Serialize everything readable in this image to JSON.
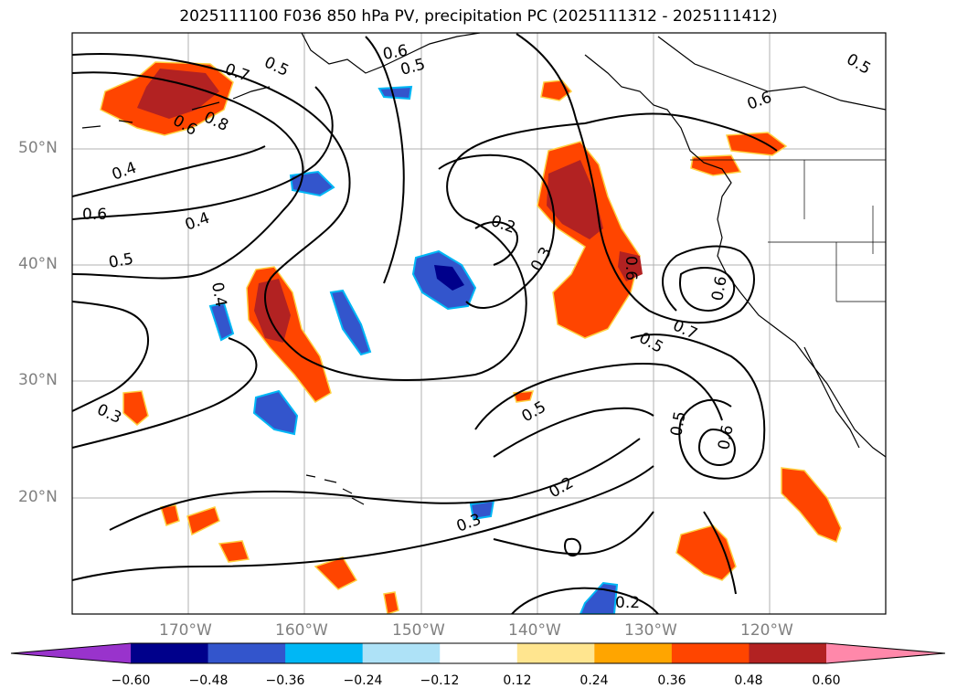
{
  "title": "2025111100 F036 850 hPa PV, precipitation PC (2025111312 - 2025111412)",
  "lat_labels": [
    "50°N",
    "40°N",
    "30°N",
    "20°N"
  ],
  "lon_labels": [
    "170°W",
    "160°W",
    "150°W",
    "140°W",
    "130°W",
    "120°W"
  ],
  "contour_labels": [
    "0.7",
    "0.5",
    "0.6",
    "0.5",
    "0.5",
    "0.6",
    "0.8",
    "0.6",
    "0.4",
    "0.6",
    "0.5",
    "0.4",
    "0.4",
    "0.2",
    "0.3",
    "0.6",
    "0.7",
    "0.5",
    "0.6",
    "0.3",
    "0.5",
    "0.5",
    "0.6",
    "0.2",
    "0.3",
    "0.2"
  ],
  "colorbar": {
    "ticks": [
      "−0.60",
      "−0.48",
      "−0.36",
      "−0.24",
      "−0.12",
      "0.12",
      "0.24",
      "0.36",
      "0.48",
      "0.60"
    ],
    "colors": [
      "#9933cc",
      "#00008b",
      "#3355cc",
      "#00b7f5",
      "#aee2f7",
      "#ffffff",
      "#ffe58f",
      "#ffa500",
      "#ff4500",
      "#b22222",
      "#ff88aa"
    ]
  }
}
